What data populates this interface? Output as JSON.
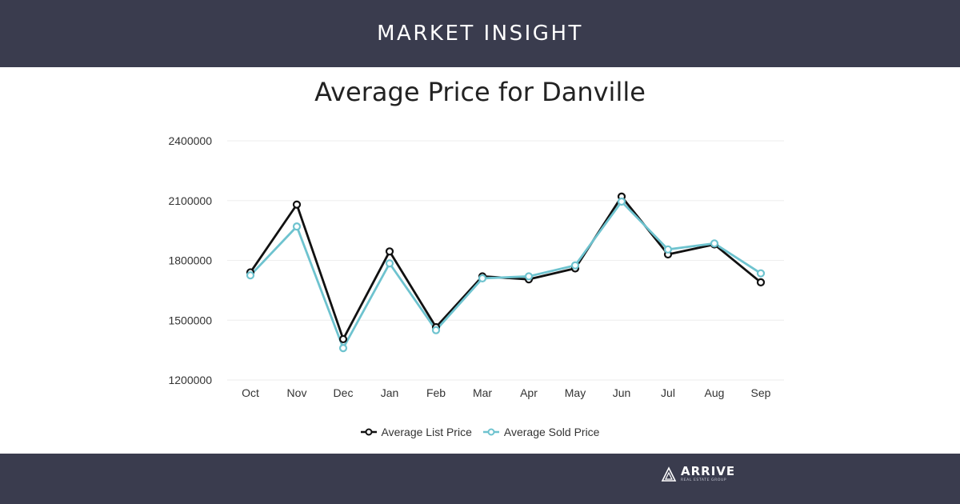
{
  "header": {
    "banner": "MARKET INSIGHT"
  },
  "footer": {
    "brand_name": "ARRIVE",
    "brand_tagline": "REAL ESTATE GROUP"
  },
  "colors": {
    "band": "#3a3c4e",
    "list_series": "#111111",
    "sold_series": "#6ec3cf",
    "grid": "#eeeeee"
  },
  "chart_data": {
    "type": "line",
    "title": "Average Price for Danville",
    "xlabel": "",
    "ylabel": "",
    "categories": [
      "Oct",
      "Nov",
      "Dec",
      "Jan",
      "Feb",
      "Mar",
      "Apr",
      "May",
      "Jun",
      "Jul",
      "Aug",
      "Sep"
    ],
    "ylim": [
      1200000,
      2400000
    ],
    "yticks": [
      "1200000",
      "1500000",
      "1800000",
      "2100000",
      "2400000"
    ],
    "grid": true,
    "legend_position": "bottom",
    "series": [
      {
        "name": "Average List Price",
        "color": "#111111",
        "values": [
          1740000,
          2080000,
          1405000,
          1845000,
          1465000,
          1720000,
          1705000,
          1760000,
          2120000,
          1830000,
          1880000,
          1690000
        ]
      },
      {
        "name": "Average Sold Price",
        "color": "#6ec3cf",
        "values": [
          1725000,
          1970000,
          1360000,
          1785000,
          1450000,
          1710000,
          1720000,
          1775000,
          2095000,
          1855000,
          1885000,
          1735000
        ]
      }
    ]
  }
}
